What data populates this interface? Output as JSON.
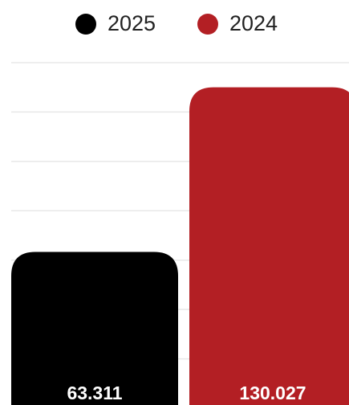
{
  "chart_data": {
    "type": "bar",
    "series": [
      {
        "name": "2025",
        "color": "#000000",
        "values": [
          63.311
        ]
      },
      {
        "name": "2024",
        "color": "#b31f24",
        "values": [
          130.027
        ]
      }
    ],
    "ylim": [
      0,
      140
    ],
    "yticks": [
      0,
      20,
      40,
      60,
      80,
      100,
      120,
      140
    ],
    "grid": true,
    "legend": "top"
  }
}
